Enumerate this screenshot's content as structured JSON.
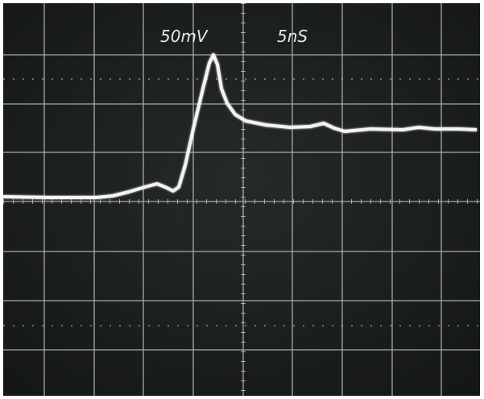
{
  "labels": {
    "volts_per_div": "50mV",
    "time_per_div": "5nS"
  }
}
